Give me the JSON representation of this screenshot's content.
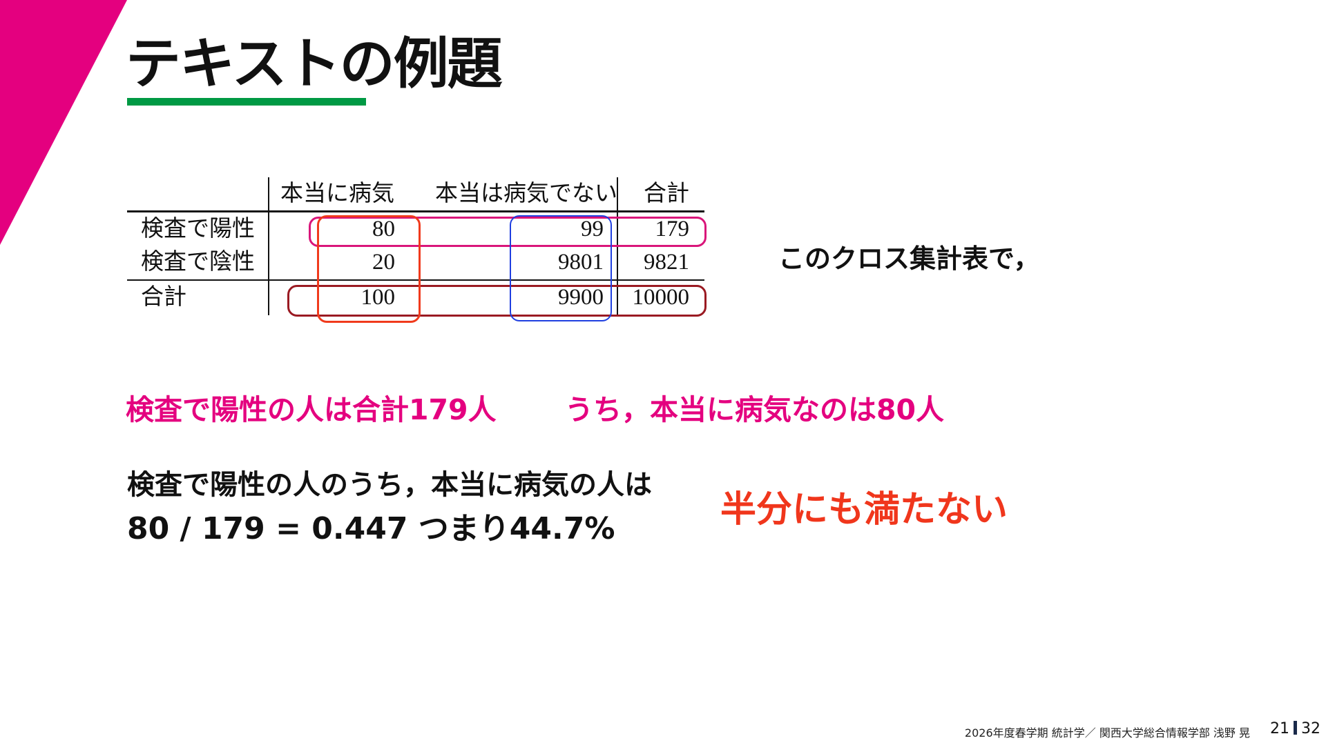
{
  "slide": {
    "title": "テキストの例題",
    "colors": {
      "accent_magenta": "#e4007f",
      "underline_green": "#009944",
      "emphasis_red": "#f0361c"
    }
  },
  "table": {
    "headers": [
      "",
      "本当に病気",
      "本当は病気でない",
      "合計"
    ],
    "rows": [
      {
        "label": "検査で陽性",
        "values": [
          "80",
          "99",
          "179"
        ]
      },
      {
        "label": "検査で陰性",
        "values": [
          "20",
          "9801",
          "9821"
        ]
      },
      {
        "label": "合計",
        "values": [
          "100",
          "9900",
          "10000"
        ]
      }
    ]
  },
  "note": "このクロス集計表で，",
  "highlight": {
    "left": "検査で陽性の人は合計179人",
    "right": "うち，本当に病気なのは80人"
  },
  "calc": {
    "line1": "検査で陽性の人のうち，本当に病気の人は",
    "line2": "80 / 179 = 0.447 つまり44.7%"
  },
  "conclusion": "半分にも満たない",
  "footer": {
    "text": "2026年度春学期  統計学／  関西大学総合情報学部  浅野  晃",
    "page": "21",
    "total": "32"
  }
}
